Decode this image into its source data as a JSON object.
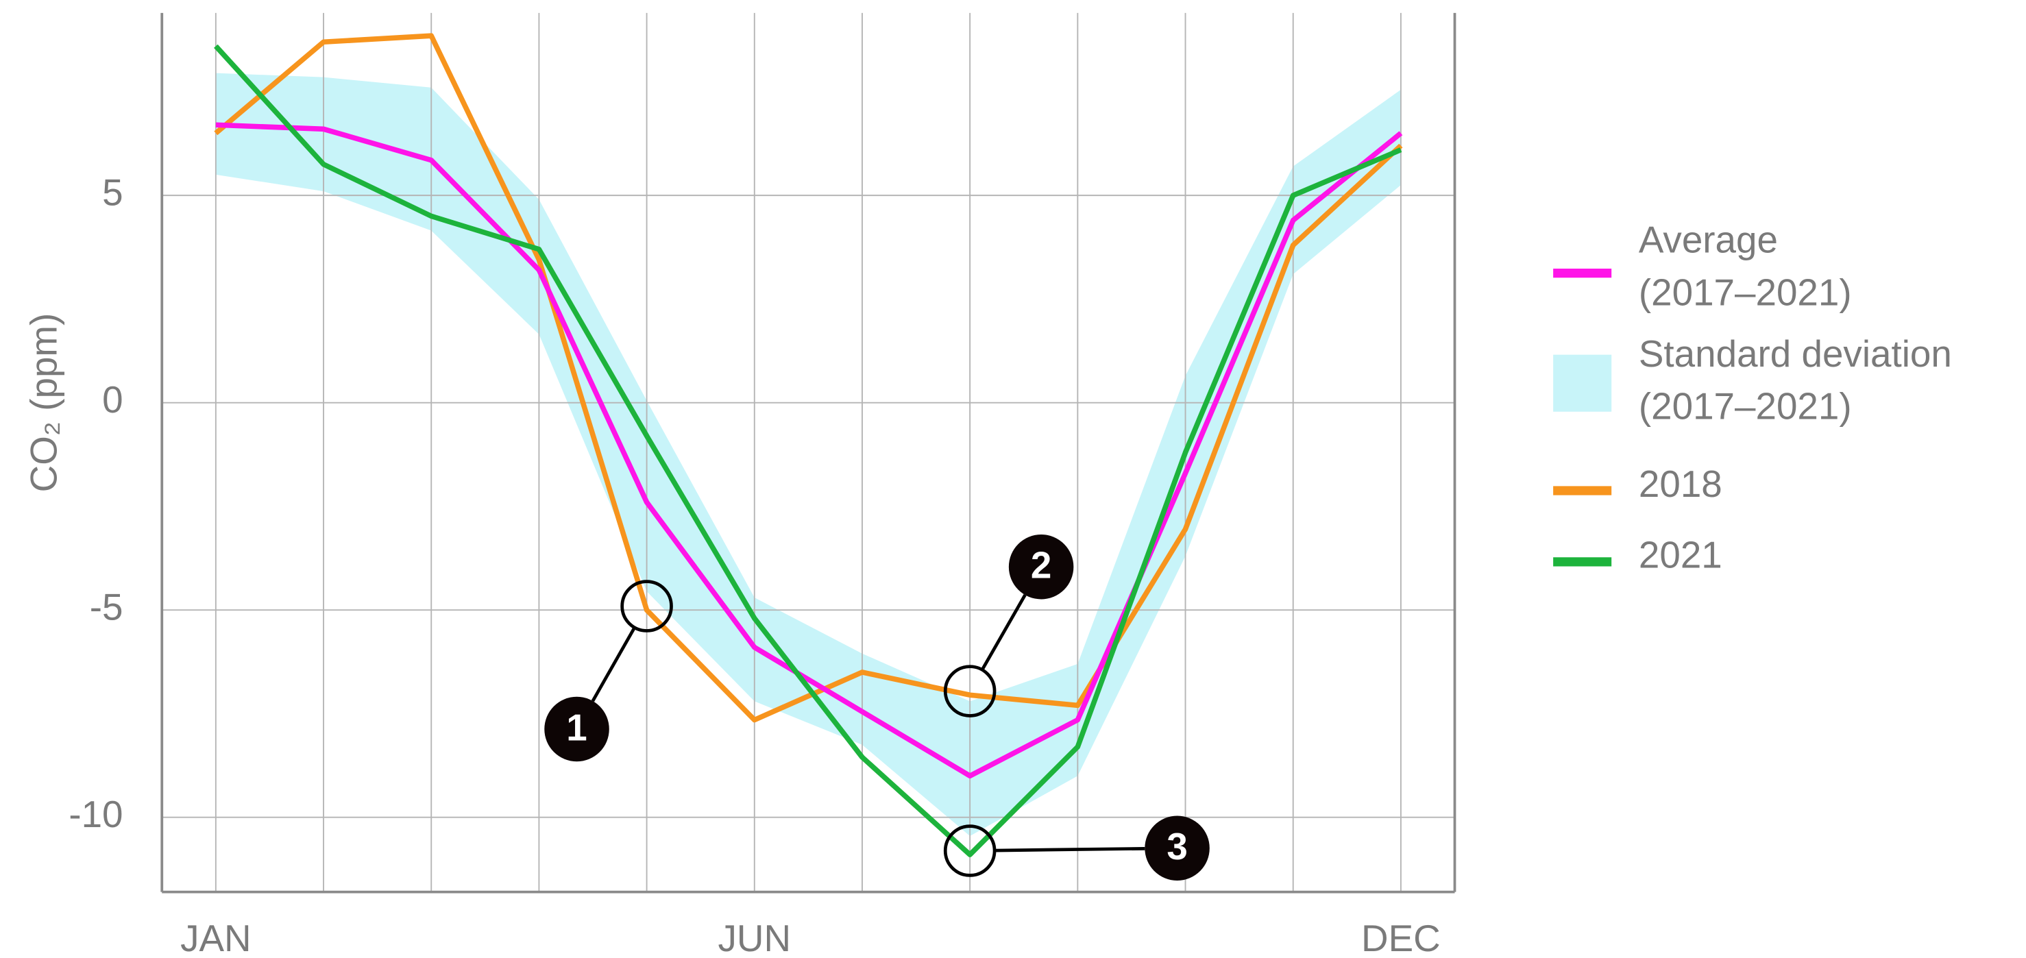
{
  "chart_data": {
    "type": "line",
    "y_label": "CO₂ (ppm)",
    "categories": [
      "JAN",
      null,
      null,
      null,
      null,
      "JUN",
      null,
      null,
      null,
      null,
      null,
      "DEC"
    ],
    "ylim": [
      -11.8,
      9.4
    ],
    "yticks": [
      -10,
      -5,
      0,
      5
    ],
    "grid": true,
    "legend": "right",
    "series": [
      {
        "name": "Average (2017–2021)",
        "color": "#ff14e8",
        "values": [
          6.7,
          6.6,
          5.85,
          3.2,
          -2.4,
          -5.9,
          -7.45,
          -9.0,
          -7.65,
          -1.7,
          4.4,
          6.5
        ]
      },
      {
        "name": "Standard deviation (2017–2021)",
        "color": "#c8f4f9",
        "kind": "band",
        "upper": [
          7.95,
          7.85,
          7.6,
          4.9,
          0.05,
          -4.7,
          -6.05,
          -7.2,
          -6.3,
          0.65,
          5.7,
          7.55
        ],
        "lower": [
          5.5,
          5.1,
          4.15,
          1.65,
          -4.55,
          -7.2,
          -8.25,
          -10.45,
          -9.0,
          -3.7,
          3.1,
          5.25
        ]
      },
      {
        "name": "2018",
        "color": "#f7941d",
        "values": [
          6.5,
          8.7,
          8.85,
          3.45,
          -5.0,
          -7.65,
          -6.5,
          -7.05,
          -7.3,
          -3.05,
          3.8,
          6.2
        ]
      },
      {
        "name": "2021",
        "color": "#1db33c",
        "values": [
          8.6,
          5.75,
          4.5,
          3.7,
          -0.8,
          -5.2,
          -8.55,
          -10.9,
          -8.3,
          -1.2,
          5.0,
          6.1
        ]
      }
    ],
    "annotations": [
      "1",
      "2",
      "3"
    ]
  }
}
